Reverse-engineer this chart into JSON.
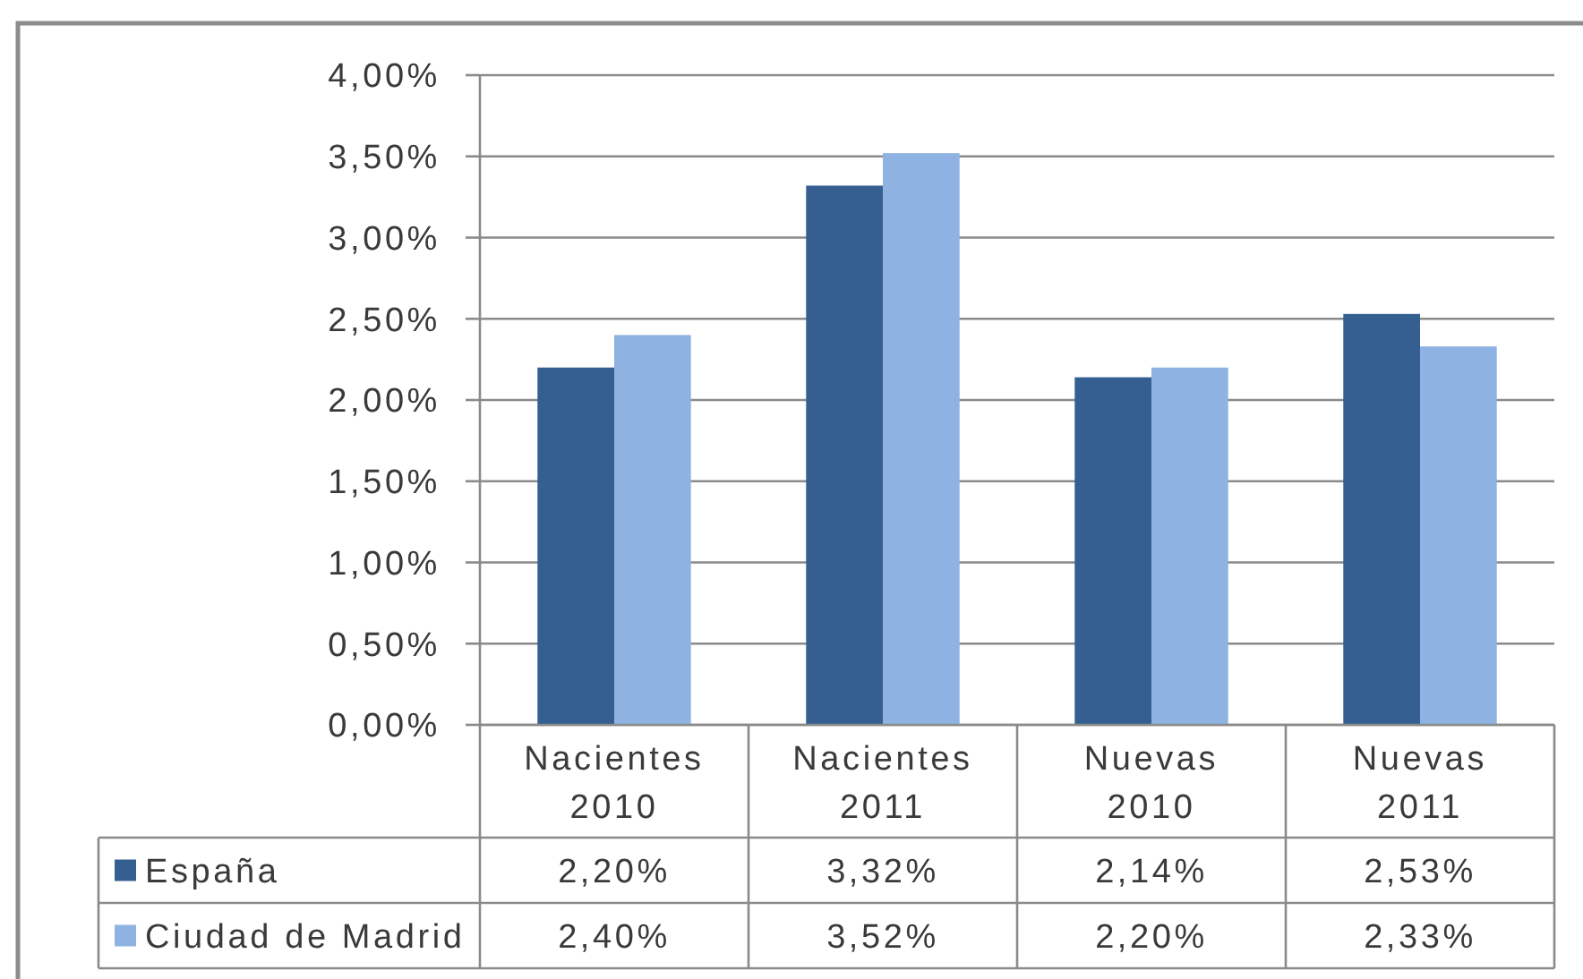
{
  "chart_data": {
    "type": "bar",
    "categories": [
      "Nacientes 2010",
      "Nacientes 2011",
      "Nuevas 2010",
      "Nuevas 2011"
    ],
    "series": [
      {
        "name": "España",
        "color": "#365f91",
        "values": [
          2.2,
          3.32,
          2.14,
          2.53
        ],
        "value_labels": [
          "2,20%",
          "3,32%",
          "2,14%",
          "2,53%"
        ]
      },
      {
        "name": "Ciudad de Madrid",
        "color": "#8eb3e2",
        "values": [
          2.4,
          3.52,
          2.2,
          2.33
        ],
        "value_labels": [
          "2,40%",
          "3,52%",
          "2,20%",
          "2,33%"
        ]
      }
    ],
    "ylim": [
      0,
      4
    ],
    "yticks": [
      {
        "value": 0,
        "label": "0,00%"
      },
      {
        "value": 0.5,
        "label": "0,50%"
      },
      {
        "value": 1,
        "label": "1,00%"
      },
      {
        "value": 1.5,
        "label": "1,50%"
      },
      {
        "value": 2,
        "label": "2,00%"
      },
      {
        "value": 2.5,
        "label": "2,50%"
      },
      {
        "value": 3,
        "label": "3,00%"
      },
      {
        "value": 3.5,
        "label": "3,50%"
      },
      {
        "value": 4,
        "label": "4,00%"
      }
    ],
    "grid": "y",
    "legend": "bottom left"
  }
}
